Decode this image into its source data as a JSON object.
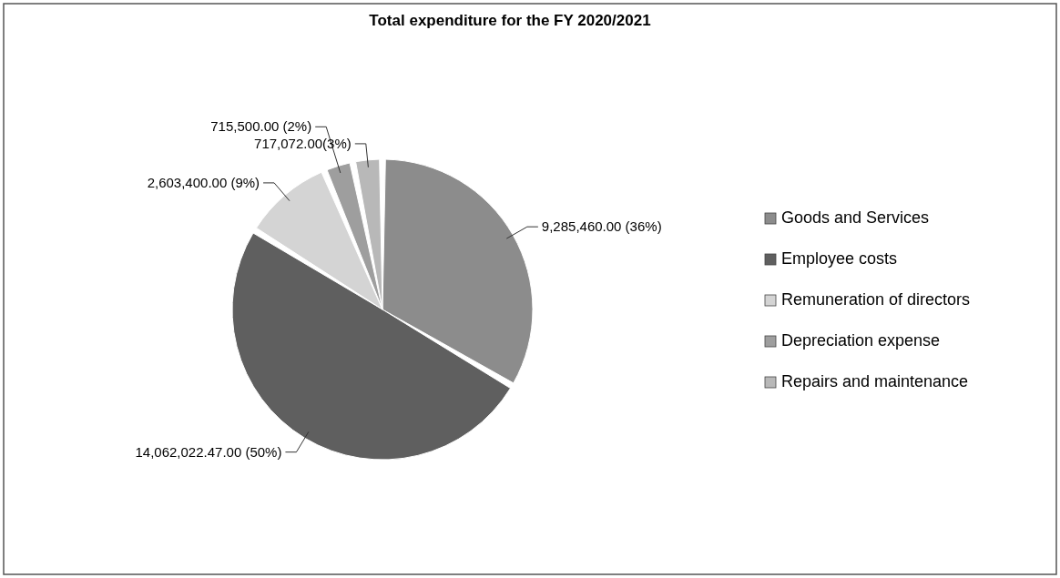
{
  "chart_data": {
    "type": "pie",
    "title": "Total expenditure for the FY 2020/2021",
    "categories": [
      "Goods and Services",
      "Employee costs",
      "Remuneration of directors",
      "Depreciation expense",
      "Repairs and maintenance"
    ],
    "values": [
      9285460.0,
      14062022.47,
      2603400.0,
      715500.0,
      717072.0
    ],
    "value_labels": [
      "9,285,460.00 (36%)",
      "14,062,022.47.00 (50%)",
      "2,603,400.00 (9%)",
      "715,500.00 (2%)",
      "717,072.00(3%)"
    ],
    "colors": [
      "#8c8c8c",
      "#5f5f5f",
      "#d4d4d4",
      "#9e9e9e",
      "#b8b8b8"
    ],
    "legend": "right"
  }
}
